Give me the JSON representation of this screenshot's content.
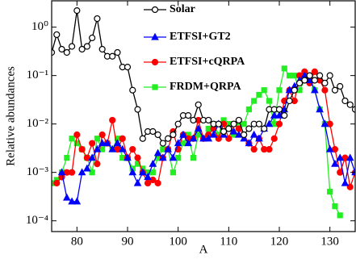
{
  "chart_data": {
    "type": "line",
    "log_y": true,
    "x_label": "A",
    "y_label": "Relative abundances",
    "xlim": [
      75,
      135
    ],
    "xticks": [
      80,
      90,
      100,
      110,
      120,
      130
    ],
    "ylim": [
      6e-05,
      3.5
    ],
    "yticks": [
      {
        "value": 0.0001,
        "label": "10⁻⁴"
      },
      {
        "value": 0.001,
        "label": "10⁻³"
      },
      {
        "value": 0.01,
        "label": "10⁻²"
      },
      {
        "value": 0.1,
        "label": "10⁻¹"
      },
      {
        "value": 1,
        "label": "10⁰"
      }
    ],
    "legend": "top-right",
    "series": [
      {
        "name": "Solar",
        "color": "#000000",
        "marker": "open-circle",
        "x": [
          75,
          76,
          77,
          78,
          79,
          80,
          81,
          82,
          83,
          84,
          85,
          86,
          87,
          88,
          89,
          90,
          91,
          92,
          93,
          94,
          95,
          96,
          97,
          98,
          99,
          100,
          101,
          102,
          103,
          104,
          105,
          106,
          107,
          108,
          109,
          110,
          111,
          112,
          113,
          114,
          115,
          116,
          117,
          118,
          119,
          120,
          121,
          122,
          123,
          124,
          125,
          126,
          127,
          128,
          129,
          130,
          131,
          132,
          133,
          134,
          135
        ],
        "values": [
          0.3,
          0.7,
          0.35,
          0.3,
          0.4,
          2.2,
          0.35,
          0.4,
          0.6,
          1.5,
          0.35,
          0.25,
          0.25,
          0.3,
          0.15,
          0.15,
          0.05,
          0.02,
          0.005,
          0.007,
          0.007,
          0.006,
          0.004,
          0.005,
          0.006,
          0.01,
          0.015,
          0.015,
          0.012,
          0.025,
          0.012,
          0.012,
          0.01,
          0.01,
          0.007,
          0.008,
          0.01,
          0.012,
          0.006,
          0.008,
          0.01,
          0.01,
          0.008,
          0.02,
          0.02,
          0.02,
          0.015,
          0.03,
          0.05,
          0.07,
          0.08,
          0.1,
          0.08,
          0.1,
          0.07,
          0.1,
          0.05,
          0.06,
          0.03,
          0.025,
          0.02
        ]
      },
      {
        "name": "ETFSI+GT2",
        "color": "#0000ff",
        "marker": "triangle",
        "x": [
          77,
          78,
          79,
          80,
          81,
          82,
          83,
          84,
          85,
          86,
          87,
          88,
          89,
          90,
          91,
          92,
          93,
          94,
          95,
          96,
          97,
          98,
          99,
          100,
          101,
          102,
          103,
          104,
          105,
          106,
          107,
          108,
          109,
          110,
          111,
          112,
          113,
          114,
          115,
          116,
          117,
          118,
          119,
          120,
          121,
          122,
          123,
          124,
          125,
          126,
          127,
          128,
          129,
          130,
          131,
          132,
          133,
          134,
          135
        ],
        "values": [
          0.001,
          0.0003,
          0.00025,
          0.00025,
          0.001,
          0.0012,
          0.002,
          0.003,
          0.004,
          0.004,
          0.003,
          0.004,
          0.003,
          0.002,
          0.001,
          0.0006,
          0.001,
          0.0008,
          0.0015,
          0.0025,
          0.002,
          0.003,
          0.002,
          0.004,
          0.006,
          0.004,
          0.005,
          0.008,
          0.005,
          0.005,
          0.006,
          0.01,
          0.006,
          0.008,
          0.007,
          0.006,
          0.005,
          0.004,
          0.006,
          0.005,
          0.008,
          0.01,
          0.015,
          0.015,
          0.02,
          0.05,
          0.06,
          0.08,
          0.1,
          0.08,
          0.05,
          0.02,
          0.01,
          0.003,
          0.0015,
          0.002,
          0.0006,
          0.002,
          0.001
        ]
      },
      {
        "name": "ETFSI+cQRPA",
        "color": "#ff0000",
        "marker": "circle",
        "x": [
          76,
          77,
          78,
          79,
          80,
          81,
          82,
          83,
          84,
          85,
          86,
          87,
          88,
          89,
          90,
          91,
          92,
          93,
          94,
          95,
          96,
          97,
          98,
          99,
          100,
          101,
          102,
          103,
          104,
          105,
          106,
          107,
          108,
          109,
          110,
          111,
          112,
          113,
          114,
          115,
          116,
          117,
          118,
          119,
          120,
          121,
          122,
          123,
          124,
          125,
          126,
          127,
          128,
          129,
          130,
          131,
          132,
          133,
          134,
          135
        ],
        "values": [
          0.0006,
          0.0008,
          0.001,
          0.001,
          0.006,
          0.003,
          0.002,
          0.004,
          0.0015,
          0.006,
          0.004,
          0.012,
          0.003,
          0.005,
          0.002,
          0.003,
          0.002,
          0.001,
          0.0006,
          0.0007,
          0.0006,
          0.002,
          0.003,
          0.007,
          0.003,
          0.006,
          0.005,
          0.005,
          0.012,
          0.005,
          0.006,
          0.008,
          0.005,
          0.01,
          0.005,
          0.01,
          0.008,
          0.006,
          0.004,
          0.003,
          0.005,
          0.003,
          0.003,
          0.005,
          0.01,
          0.03,
          0.05,
          0.03,
          0.1,
          0.12,
          0.07,
          0.12,
          0.08,
          0.05,
          0.01,
          0.003,
          0.001,
          0.002,
          0.0005,
          0.001
        ]
      },
      {
        "name": "FRDM+QRPA",
        "color": "#22ee22",
        "marker": "square",
        "x": [
          75,
          76,
          77,
          78,
          79,
          80,
          81,
          82,
          83,
          84,
          85,
          86,
          87,
          88,
          89,
          90,
          91,
          92,
          93,
          94,
          95,
          96,
          97,
          98,
          99,
          100,
          101,
          102,
          103,
          104,
          105,
          106,
          107,
          108,
          109,
          110,
          111,
          112,
          113,
          114,
          115,
          116,
          117,
          118,
          119,
          120,
          121,
          122,
          123,
          124,
          125,
          126,
          127,
          128,
          129,
          130,
          131,
          132
        ],
        "values": [
          0.0006,
          0.0007,
          0.001,
          0.002,
          0.005,
          0.004,
          0.003,
          0.002,
          0.001,
          0.005,
          0.003,
          0.004,
          0.003,
          0.005,
          0.002,
          0.002,
          0.0012,
          0.0015,
          0.0012,
          0.001,
          0.001,
          0.002,
          0.003,
          0.003,
          0.001,
          0.002,
          0.004,
          0.006,
          0.002,
          0.006,
          0.005,
          0.008,
          0.01,
          0.006,
          0.012,
          0.01,
          0.006,
          0.011,
          0.01,
          0.02,
          0.03,
          0.04,
          0.05,
          0.03,
          0.01,
          0.05,
          0.14,
          0.1,
          0.1,
          0.05,
          0.08,
          0.1,
          0.05,
          0.02,
          0.01,
          0.0004,
          0.0002,
          0.00013
        ]
      }
    ]
  }
}
